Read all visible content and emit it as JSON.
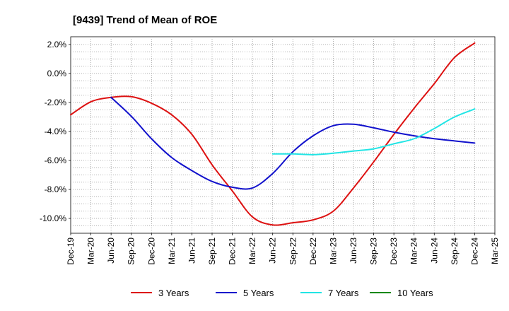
{
  "chart_data": {
    "type": "line",
    "title": "[9439]  Trend of Mean of ROE",
    "xlabel": "",
    "ylabel": "",
    "ylim": [
      -11.0,
      2.5
    ],
    "y_ticks": [
      "2.0%",
      "0.0%",
      "-2.0%",
      "-4.0%",
      "-6.0%",
      "-8.0%",
      "-10.0%"
    ],
    "y_tick_values": [
      2.0,
      0.0,
      -2.0,
      -4.0,
      -6.0,
      -8.0,
      -10.0
    ],
    "categories": [
      "Dec-19",
      "Mar-20",
      "Jun-20",
      "Sep-20",
      "Dec-20",
      "Mar-21",
      "Jun-21",
      "Sep-21",
      "Dec-21",
      "Mar-22",
      "Jun-22",
      "Sep-22",
      "Dec-22",
      "Mar-23",
      "Jun-23",
      "Sep-23",
      "Dec-23",
      "Mar-24",
      "Jun-24",
      "Sep-24",
      "Dec-24",
      "Mar-25"
    ],
    "grid": true,
    "legend_position": "bottom",
    "series": [
      {
        "name": "3 Years",
        "color": "#dd1111",
        "values": [
          -2.85,
          -1.95,
          -1.65,
          -1.6,
          -2.05,
          -2.85,
          -4.2,
          -6.3,
          -8.1,
          -9.9,
          -10.45,
          -10.3,
          -10.1,
          -9.5,
          -7.9,
          -6.1,
          -4.2,
          -2.4,
          -0.7,
          1.1,
          2.1,
          null
        ]
      },
      {
        "name": "5 Years",
        "color": "#1111cc",
        "values": [
          null,
          null,
          -1.65,
          -2.95,
          -4.5,
          -5.8,
          -6.7,
          -7.45,
          -7.85,
          -7.9,
          -6.9,
          -5.4,
          -4.3,
          -3.6,
          -3.5,
          -3.75,
          -4.05,
          -4.3,
          -4.5,
          -4.65,
          -4.8,
          null
        ]
      },
      {
        "name": "7 Years",
        "color": "#22e5e5",
        "values": [
          null,
          null,
          null,
          null,
          null,
          null,
          null,
          null,
          null,
          null,
          -5.55,
          -5.55,
          -5.6,
          -5.5,
          -5.35,
          -5.2,
          -4.85,
          -4.5,
          -3.8,
          -3.0,
          -2.45,
          null
        ]
      },
      {
        "name": "10 Years",
        "color": "#118811",
        "values": [
          null,
          null,
          null,
          null,
          null,
          null,
          null,
          null,
          null,
          null,
          null,
          null,
          null,
          null,
          null,
          null,
          null,
          null,
          null,
          null,
          null,
          null
        ]
      }
    ]
  }
}
